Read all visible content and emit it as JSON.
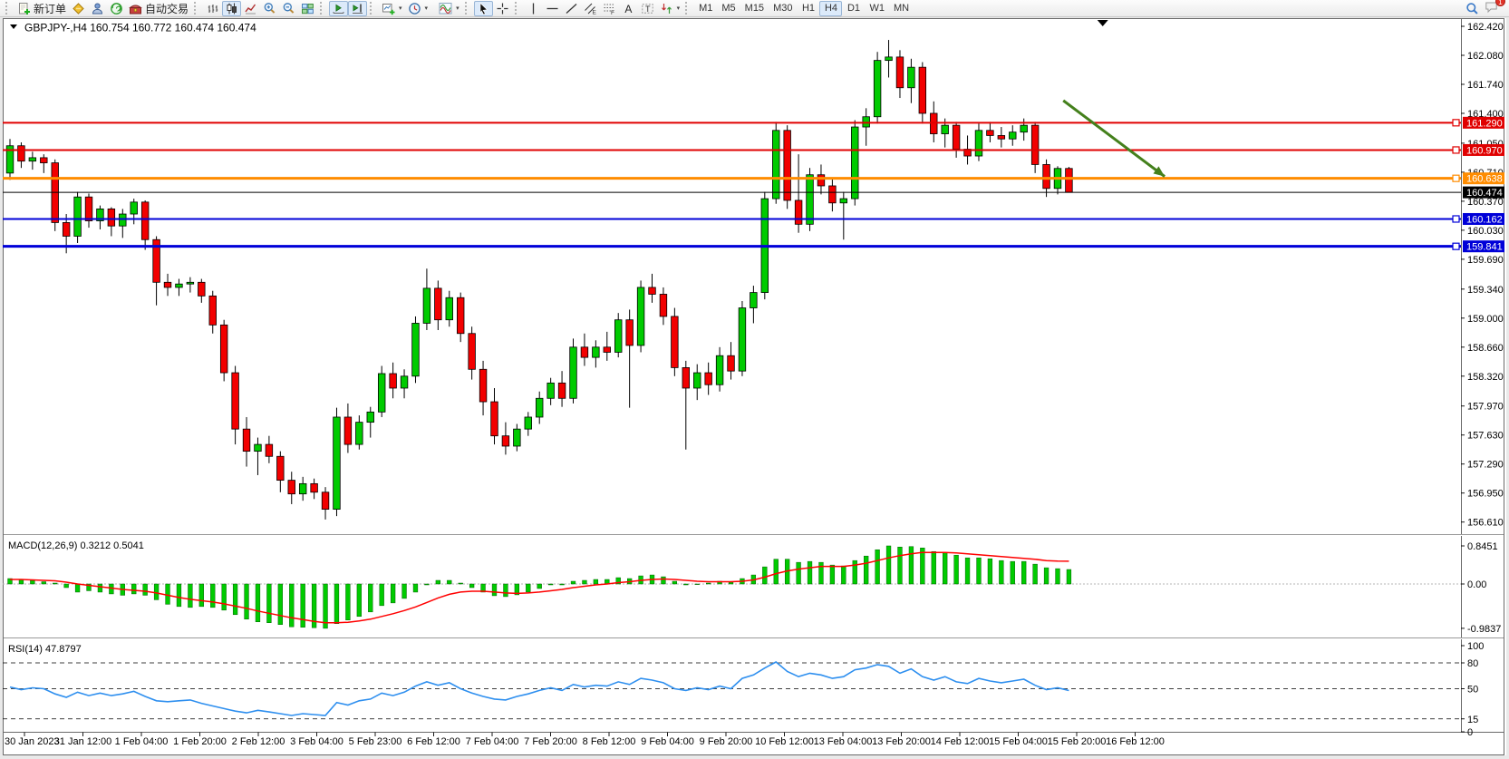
{
  "toolbar": {
    "new_order": "新订单",
    "autotrading": "自动交易",
    "timeframes": [
      "M1",
      "M5",
      "M15",
      "M30",
      "H1",
      "H4",
      "D1",
      "W1",
      "MN"
    ],
    "active_timeframe": "H4",
    "notification_badge": "1"
  },
  "chart": {
    "header": "GBPJPY-,H4  160.754 160.772 160.474 160.474"
  },
  "chart_data": {
    "type": "candlestick",
    "symbol": "GBPJPY-",
    "timeframe": "H4",
    "ohlc_header": {
      "open": 160.754,
      "high": 160.772,
      "low": 160.474,
      "close": 160.474
    },
    "ylim": [
      156.47,
      162.52
    ],
    "price_axis_ticks": [
      "162.420",
      "162.080",
      "161.740",
      "161.400",
      "161.050",
      "160.710",
      "160.370",
      "160.030",
      "159.690",
      "159.340",
      "159.000",
      "158.660",
      "158.320",
      "157.970",
      "157.630",
      "157.290",
      "156.950",
      "156.610"
    ],
    "x_labels": [
      "30 Jan 2023",
      "31 Jan 12:00",
      "1 Feb 04:00",
      "1 Feb 20:00",
      "2 Feb 12:00",
      "3 Feb 04:00",
      "5 Feb 23:00",
      "6 Feb 12:00",
      "7 Feb 04:00",
      "7 Feb 20:00",
      "8 Feb 12:00",
      "9 Feb 04:00",
      "9 Feb 20:00",
      "10 Feb 12:00",
      "13 Feb 04:00",
      "13 Feb 20:00",
      "14 Feb 12:00",
      "15 Feb 04:00",
      "15 Feb 20:00",
      "16 Feb 12:00"
    ],
    "colors": {
      "candle_up": "#00CB00",
      "candle_down": "#F20000",
      "candle_border": "#000000"
    },
    "candles": [
      [
        160.7,
        161.1,
        160.62,
        161.02
      ],
      [
        161.02,
        161.06,
        160.76,
        160.84
      ],
      [
        160.84,
        160.95,
        160.74,
        160.88
      ],
      [
        160.88,
        160.92,
        160.7,
        160.82
      ],
      [
        160.82,
        160.86,
        160.02,
        160.12
      ],
      [
        160.12,
        160.22,
        159.76,
        159.96
      ],
      [
        159.96,
        160.48,
        159.88,
        160.42
      ],
      [
        160.42,
        160.46,
        160.06,
        160.14
      ],
      [
        160.14,
        160.32,
        160.04,
        160.28
      ],
      [
        160.28,
        160.3,
        159.96,
        160.08
      ],
      [
        160.08,
        160.28,
        159.94,
        160.22
      ],
      [
        160.22,
        160.4,
        160.1,
        160.36
      ],
      [
        160.36,
        160.38,
        159.8,
        159.92
      ],
      [
        159.92,
        159.96,
        159.15,
        159.42
      ],
      [
        159.42,
        159.52,
        159.26,
        159.36
      ],
      [
        159.36,
        159.46,
        159.26,
        159.4
      ],
      [
        159.4,
        159.48,
        159.3,
        159.42
      ],
      [
        159.42,
        159.46,
        159.18,
        159.26
      ],
      [
        159.26,
        159.32,
        158.82,
        158.92
      ],
      [
        158.92,
        158.98,
        158.26,
        158.36
      ],
      [
        158.36,
        158.44,
        157.52,
        157.7
      ],
      [
        157.7,
        157.84,
        157.26,
        157.44
      ],
      [
        157.44,
        157.6,
        157.16,
        157.52
      ],
      [
        157.52,
        157.62,
        157.3,
        157.38
      ],
      [
        157.38,
        157.44,
        156.96,
        157.1
      ],
      [
        157.1,
        157.2,
        156.82,
        156.94
      ],
      [
        156.94,
        157.14,
        156.86,
        157.06
      ],
      [
        157.06,
        157.12,
        156.88,
        156.96
      ],
      [
        156.96,
        157.02,
        156.64,
        156.76
      ],
      [
        156.76,
        157.95,
        156.68,
        157.84
      ],
      [
        157.84,
        158.0,
        157.42,
        157.52
      ],
      [
        157.52,
        157.86,
        157.46,
        157.78
      ],
      [
        157.78,
        157.96,
        157.6,
        157.9
      ],
      [
        157.9,
        158.44,
        157.84,
        158.35
      ],
      [
        158.35,
        158.48,
        158.06,
        158.18
      ],
      [
        158.18,
        158.4,
        158.06,
        158.32
      ],
      [
        158.32,
        159.02,
        158.24,
        158.94
      ],
      [
        158.94,
        159.58,
        158.86,
        159.35
      ],
      [
        159.35,
        159.44,
        158.86,
        158.98
      ],
      [
        158.98,
        159.32,
        158.9,
        159.24
      ],
      [
        159.24,
        159.3,
        158.72,
        158.82
      ],
      [
        158.82,
        158.9,
        158.28,
        158.4
      ],
      [
        158.4,
        158.5,
        157.86,
        158.02
      ],
      [
        158.02,
        158.18,
        157.52,
        157.62
      ],
      [
        157.62,
        157.78,
        157.4,
        157.5
      ],
      [
        157.5,
        157.76,
        157.44,
        157.7
      ],
      [
        157.7,
        157.9,
        157.62,
        157.84
      ],
      [
        157.84,
        158.14,
        157.76,
        158.06
      ],
      [
        158.06,
        158.3,
        157.98,
        158.24
      ],
      [
        158.24,
        158.38,
        157.96,
        158.06
      ],
      [
        158.06,
        158.76,
        158.0,
        158.66
      ],
      [
        158.66,
        158.82,
        158.44,
        158.54
      ],
      [
        158.54,
        158.74,
        158.42,
        158.66
      ],
      [
        158.66,
        158.84,
        158.5,
        158.6
      ],
      [
        158.6,
        159.06,
        158.54,
        158.98
      ],
      [
        158.98,
        159.1,
        157.95,
        158.68
      ],
      [
        158.68,
        159.44,
        158.6,
        159.36
      ],
      [
        159.36,
        159.52,
        159.18,
        159.28
      ],
      [
        159.28,
        159.36,
        158.92,
        159.02
      ],
      [
        159.02,
        159.12,
        158.32,
        158.42
      ],
      [
        158.42,
        158.5,
        157.46,
        158.18
      ],
      [
        158.18,
        158.46,
        158.04,
        158.36
      ],
      [
        158.36,
        158.48,
        158.1,
        158.22
      ],
      [
        158.22,
        158.66,
        158.14,
        158.56
      ],
      [
        158.56,
        158.72,
        158.28,
        158.38
      ],
      [
        158.38,
        159.2,
        158.32,
        159.12
      ],
      [
        159.12,
        159.38,
        158.94,
        159.3
      ],
      [
        159.3,
        160.48,
        159.22,
        160.4
      ],
      [
        160.4,
        161.3,
        160.34,
        161.2
      ],
      [
        161.2,
        161.26,
        160.28,
        160.38
      ],
      [
        160.38,
        160.92,
        160.0,
        160.1
      ],
      [
        160.1,
        160.76,
        160.02,
        160.68
      ],
      [
        160.68,
        160.8,
        160.45,
        160.55
      ],
      [
        160.55,
        160.65,
        160.25,
        160.35
      ],
      [
        160.35,
        160.48,
        159.92,
        160.4
      ],
      [
        160.4,
        161.32,
        160.32,
        161.24
      ],
      [
        161.24,
        161.46,
        161.02,
        161.36
      ],
      [
        161.36,
        162.12,
        161.28,
        162.02
      ],
      [
        162.02,
        162.26,
        161.82,
        162.06
      ],
      [
        162.06,
        162.14,
        161.58,
        161.7
      ],
      [
        161.7,
        162.04,
        161.52,
        161.94
      ],
      [
        161.94,
        162.0,
        161.28,
        161.4
      ],
      [
        161.4,
        161.54,
        161.06,
        161.16
      ],
      [
        161.16,
        161.34,
        161.0,
        161.26
      ],
      [
        161.26,
        161.3,
        160.88,
        160.98
      ],
      [
        160.98,
        161.14,
        160.8,
        160.9
      ],
      [
        160.9,
        161.28,
        160.84,
        161.2
      ],
      [
        161.2,
        161.3,
        161.06,
        161.14
      ],
      [
        161.14,
        161.24,
        161.0,
        161.1
      ],
      [
        161.1,
        161.26,
        161.02,
        161.18
      ],
      [
        161.18,
        161.34,
        161.08,
        161.26
      ],
      [
        161.26,
        161.3,
        160.7,
        160.8
      ],
      [
        160.8,
        160.86,
        160.42,
        160.52
      ],
      [
        160.52,
        160.78,
        160.45,
        160.754
      ],
      [
        160.754,
        160.772,
        160.474,
        160.474
      ]
    ],
    "hlines": [
      {
        "price": 161.29,
        "label": "161.290",
        "color": "#E00000",
        "width": 2
      },
      {
        "price": 160.97,
        "label": "160.970",
        "color": "#E00000",
        "width": 2
      },
      {
        "price": 160.638,
        "label": "160.638",
        "color": "#FF8C00",
        "width": 3
      },
      {
        "price": 160.162,
        "label": "160.162",
        "color": "#0000D8",
        "width": 2
      },
      {
        "price": 159.841,
        "label": "159.841",
        "color": "#0000D8",
        "width": 3
      }
    ],
    "current_price": {
      "value": 160.474,
      "label": "160.474",
      "color": "#000000"
    },
    "arrow_annotation": {
      "from": {
        "index": 93.5,
        "price": 161.55
      },
      "to": {
        "index": 102.5,
        "price": 160.66
      },
      "color": "#44801C"
    },
    "end_marker_index": 97,
    "macd": {
      "label": "MACD(12,26,9) 0.3212 0.5041",
      "params": "12,26,9",
      "main_value": 0.3212,
      "signal_value": 0.5041,
      "yticks": [
        "0.8451",
        "0.00",
        "-0.9837"
      ],
      "ytick_values": [
        0.8451,
        0,
        -0.9837
      ],
      "histogram_color": "#00CB00",
      "signal_color": "#FF0000",
      "values": [
        0.12,
        0.1,
        0.08,
        0.05,
        0.02,
        -0.08,
        -0.18,
        -0.15,
        -0.18,
        -0.22,
        -0.25,
        -0.22,
        -0.25,
        -0.35,
        -0.45,
        -0.5,
        -0.52,
        -0.5,
        -0.52,
        -0.58,
        -0.68,
        -0.78,
        -0.84,
        -0.86,
        -0.9,
        -0.95,
        -0.96,
        -0.97,
        -0.9837,
        -0.88,
        -0.8,
        -0.72,
        -0.62,
        -0.48,
        -0.42,
        -0.32,
        -0.18,
        -0.02,
        0.08,
        0.08,
        0.02,
        -0.08,
        -0.18,
        -0.26,
        -0.28,
        -0.24,
        -0.18,
        -0.1,
        -0.02,
        -0.02,
        0.06,
        0.08,
        0.1,
        0.1,
        0.14,
        0.12,
        0.18,
        0.2,
        0.16,
        0.06,
        -0.02,
        0.0,
        0.02,
        0.06,
        0.04,
        0.12,
        0.2,
        0.38,
        0.55,
        0.55,
        0.48,
        0.5,
        0.48,
        0.42,
        0.4,
        0.52,
        0.62,
        0.76,
        0.8451,
        0.82,
        0.83,
        0.8,
        0.72,
        0.7,
        0.64,
        0.58,
        0.58,
        0.56,
        0.52,
        0.5,
        0.5,
        0.44,
        0.36,
        0.34,
        0.3212
      ],
      "signal": [
        0.1,
        0.1,
        0.09,
        0.08,
        0.07,
        0.04,
        0.0,
        -0.03,
        -0.06,
        -0.09,
        -0.12,
        -0.14,
        -0.16,
        -0.2,
        -0.25,
        -0.3,
        -0.34,
        -0.37,
        -0.4,
        -0.44,
        -0.49,
        -0.54,
        -0.6,
        -0.65,
        -0.7,
        -0.75,
        -0.79,
        -0.83,
        -0.86,
        -0.86,
        -0.85,
        -0.82,
        -0.78,
        -0.72,
        -0.66,
        -0.59,
        -0.51,
        -0.41,
        -0.31,
        -0.23,
        -0.18,
        -0.16,
        -0.16,
        -0.18,
        -0.2,
        -0.21,
        -0.2,
        -0.18,
        -0.15,
        -0.12,
        -0.08,
        -0.05,
        -0.02,
        0.0,
        0.03,
        0.05,
        0.08,
        0.1,
        0.11,
        0.1,
        0.08,
        0.06,
        0.05,
        0.05,
        0.05,
        0.06,
        0.09,
        0.15,
        0.23,
        0.29,
        0.33,
        0.36,
        0.39,
        0.39,
        0.39,
        0.42,
        0.46,
        0.52,
        0.58,
        0.63,
        0.67,
        0.7,
        0.7,
        0.7,
        0.69,
        0.67,
        0.65,
        0.63,
        0.61,
        0.59,
        0.57,
        0.55,
        0.52,
        0.51,
        0.5041
      ]
    },
    "rsi": {
      "label": "RSI(14) 47.8797",
      "period": 14,
      "last_value": 47.8797,
      "yticks": [
        "100",
        "80",
        "50",
        "15",
        "0"
      ],
      "ytick_values": [
        100,
        80,
        50,
        15,
        0
      ],
      "levels": [
        80,
        50,
        15
      ],
      "line_color": "#2E8FEF",
      "values": [
        52,
        49,
        51,
        50,
        44,
        40,
        46,
        42,
        45,
        42,
        44,
        47,
        41,
        36,
        35,
        36,
        37,
        33,
        30,
        27,
        24,
        22,
        25,
        23,
        21,
        19,
        21,
        20,
        19,
        34,
        31,
        36,
        38,
        45,
        42,
        46,
        53,
        58,
        54,
        57,
        50,
        45,
        41,
        38,
        37,
        41,
        44,
        48,
        51,
        48,
        55,
        52,
        54,
        53,
        58,
        55,
        62,
        60,
        57,
        50,
        48,
        51,
        49,
        53,
        50,
        62,
        66,
        74,
        81,
        70,
        64,
        68,
        66,
        62,
        64,
        72,
        74,
        78,
        76,
        68,
        73,
        64,
        60,
        64,
        58,
        56,
        62,
        59,
        57,
        59,
        61,
        54,
        49,
        51,
        47.8797
      ]
    }
  }
}
